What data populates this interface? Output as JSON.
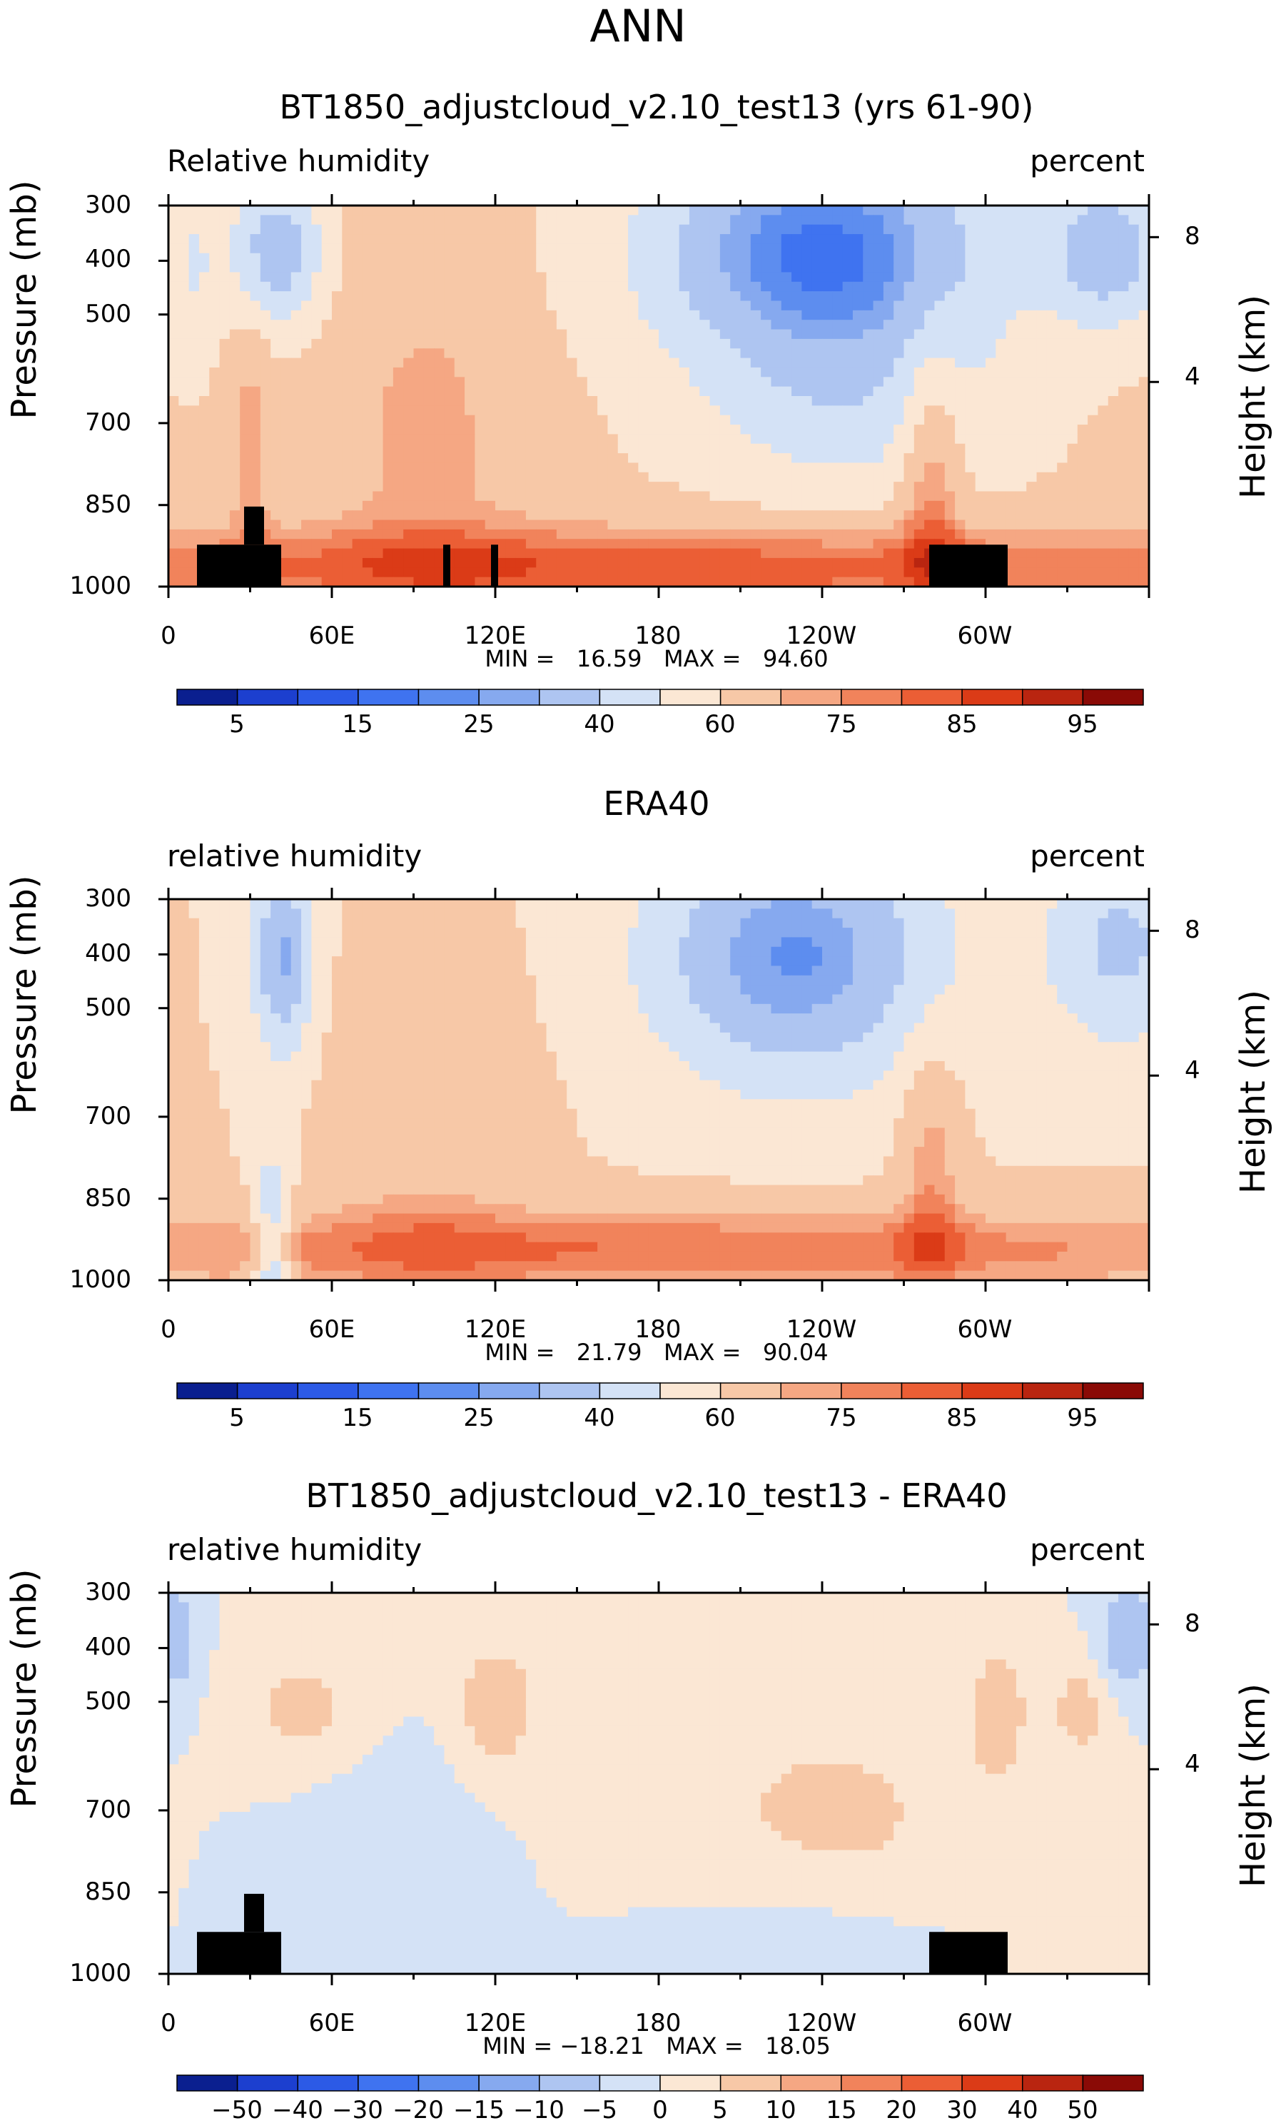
{
  "figure": {
    "main_title": "ANN",
    "field_colors": [
      "#0a1f8f",
      "#1c3fcf",
      "#2c5ae6",
      "#3f73f0",
      "#5d8def",
      "#86a9ef",
      "#aec5f1",
      "#d4e2f6",
      "#fbe7d4",
      "#f7c8a7",
      "#f5a783",
      "#f1835b",
      "#eb5e35",
      "#db3b17",
      "#b92510",
      "#8a0a06"
    ],
    "diff_colors": [
      "#0a1f8f",
      "#1c3fcf",
      "#2c5ae6",
      "#3f73f0",
      "#5d8def",
      "#86a9ef",
      "#aec5f1",
      "#d4e2f6",
      "#fbe7d4",
      "#f7c8a7",
      "#f5a783",
      "#f1835b",
      "#eb5e35",
      "#db3b17",
      "#b92510",
      "#8a0a06"
    ]
  },
  "chart_data": [
    {
      "type": "heatmap",
      "title": "BT1850_adjustcloud_v2.10_test13 (yrs 61-90)",
      "variable_label": "Relative humidity",
      "units_label": "percent",
      "ylabel": "Pressure (mb)",
      "y2label": "Height (km)",
      "yticks": [
        "300",
        "400",
        "500",
        "700",
        "850",
        "1000"
      ],
      "y2ticks": [
        "8",
        "4"
      ],
      "xticks": [
        "0",
        "60E",
        "120E",
        "180",
        "120W",
        "60W"
      ],
      "stats": "MIN =   16.59   MAX =   94.60",
      "colorbar_labels": [
        "5",
        "15",
        "25",
        "40",
        "60",
        "75",
        "85",
        "95"
      ],
      "levels": [
        5,
        10,
        15,
        20,
        25,
        30,
        40,
        50,
        60,
        70,
        75,
        80,
        85,
        90,
        95
      ],
      "xlim": [
        0,
        360
      ],
      "ylim": [
        1000,
        300
      ]
    },
    {
      "type": "heatmap",
      "title": "ERA40",
      "variable_label": "relative humidity",
      "units_label": "percent",
      "ylabel": "Pressure (mb)",
      "y2label": "Height (km)",
      "yticks": [
        "300",
        "400",
        "500",
        "700",
        "850",
        "1000"
      ],
      "y2ticks": [
        "8",
        "4"
      ],
      "xticks": [
        "0",
        "60E",
        "120E",
        "180",
        "120W",
        "60W"
      ],
      "stats": "MIN =   21.79   MAX =   90.04",
      "colorbar_labels": [
        "5",
        "15",
        "25",
        "40",
        "60",
        "75",
        "85",
        "95"
      ],
      "levels": [
        5,
        10,
        15,
        20,
        25,
        30,
        40,
        50,
        60,
        70,
        75,
        80,
        85,
        90,
        95
      ],
      "xlim": [
        0,
        360
      ],
      "ylim": [
        1000,
        300
      ]
    },
    {
      "type": "heatmap",
      "title": "BT1850_adjustcloud_v2.10_test13 - ERA40",
      "variable_label": "relative humidity",
      "units_label": "percent",
      "ylabel": "Pressure (mb)",
      "y2label": "Height (km)",
      "yticks": [
        "300",
        "400",
        "500",
        "700",
        "850",
        "1000"
      ],
      "y2ticks": [
        "8",
        "4"
      ],
      "xticks": [
        "0",
        "60E",
        "120E",
        "180",
        "120W",
        "60W"
      ],
      "stats": "MIN = −18.21   MAX =   18.05",
      "colorbar_labels": [
        "−50",
        "−40",
        "−30",
        "−20",
        "−15",
        "−10",
        "−5",
        "0",
        "5",
        "10",
        "15",
        "20",
        "30",
        "40",
        "50"
      ],
      "levels": [
        -50,
        -40,
        -30,
        -20,
        -15,
        -10,
        -5,
        0,
        5,
        10,
        15,
        20,
        30,
        40,
        50
      ],
      "xlim": [
        0,
        360
      ],
      "ylim": [
        1000,
        300
      ]
    }
  ]
}
